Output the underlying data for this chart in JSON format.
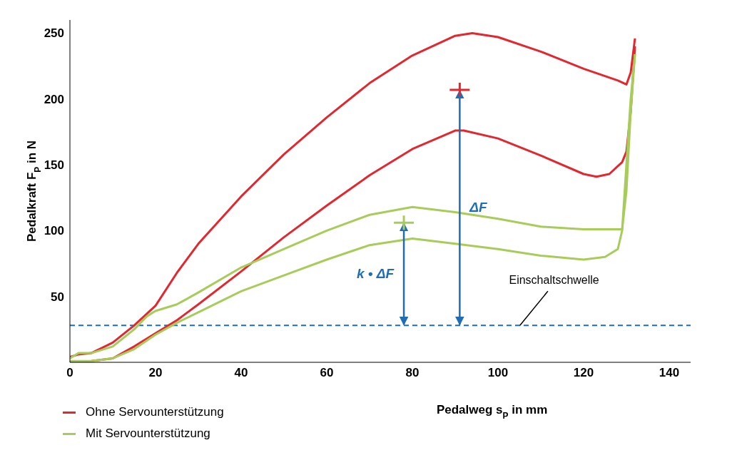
{
  "chart_data": {
    "type": "line",
    "xlabel": "Pedalweg s$_{P}$ in mm",
    "ylabel": "Pedalkraft F$_{P}$ in N",
    "xlim": [
      0,
      145
    ],
    "ylim": [
      0,
      260
    ],
    "xticks": [
      0,
      20,
      40,
      60,
      80,
      100,
      120,
      140
    ],
    "yticks": [
      50,
      100,
      150,
      200,
      250
    ],
    "legend": "bottom left",
    "marker": "none",
    "line_style": "solid",
    "series": [
      {
        "name": "Ohne Servounterstützung",
        "color": "#e2272f",
        "x": [
          0,
          2,
          5,
          10,
          15,
          20,
          25,
          30,
          40,
          50,
          60,
          70,
          80,
          90,
          94,
          100,
          110,
          120,
          128,
          130,
          131,
          132
        ],
        "values": [
          4,
          6,
          7,
          15,
          28,
          43,
          68,
          90,
          126,
          158,
          186,
          212,
          233,
          248,
          250,
          247,
          236,
          223,
          214,
          211,
          220,
          246
        ]
      },
      {
        "color": "#e2272f",
        "x": [
          0,
          5,
          10,
          15,
          20,
          25,
          30,
          40,
          50,
          60,
          70,
          80,
          90,
          92,
          100,
          110,
          120,
          123,
          126,
          129,
          130,
          131,
          132
        ],
        "values": [
          0,
          1,
          3,
          12,
          22,
          32,
          44,
          69,
          95,
          119,
          142,
          162,
          176,
          176,
          170,
          157,
          143,
          141,
          143,
          152,
          160,
          190,
          240
        ]
      },
      {
        "name": "Mit Servounterstützung",
        "color": "#a8cc5a",
        "x": [
          0,
          2,
          5,
          10,
          15,
          18,
          20,
          25,
          30,
          40,
          50,
          60,
          70,
          80,
          90,
          100,
          110,
          120,
          129,
          130,
          131,
          132
        ],
        "values": [
          3,
          7,
          7,
          12,
          25,
          35,
          39,
          44,
          53,
          72,
          86,
          100,
          112,
          118,
          114,
          109,
          103,
          101,
          101,
          130,
          190,
          234
        ]
      },
      {
        "color": "#a8cc5a",
        "x": [
          0,
          5,
          10,
          15,
          20,
          25,
          30,
          40,
          50,
          60,
          70,
          80,
          90,
          100,
          110,
          120,
          125,
          128,
          129,
          130,
          131,
          132
        ],
        "values": [
          1,
          1,
          3,
          10,
          21,
          30,
          38,
          54,
          66,
          78,
          89,
          94,
          90,
          86,
          81,
          78,
          80,
          86,
          100,
          150,
          200,
          234
        ]
      }
    ],
    "ref_lines": [
      {
        "axis": "y",
        "value": 28,
        "label": "Einschaltschwelle",
        "color": "#1f6eb5",
        "line_style": "dashed"
      }
    ],
    "annotations": [
      "ΔF",
      "k • ΔF"
    ]
  }
}
